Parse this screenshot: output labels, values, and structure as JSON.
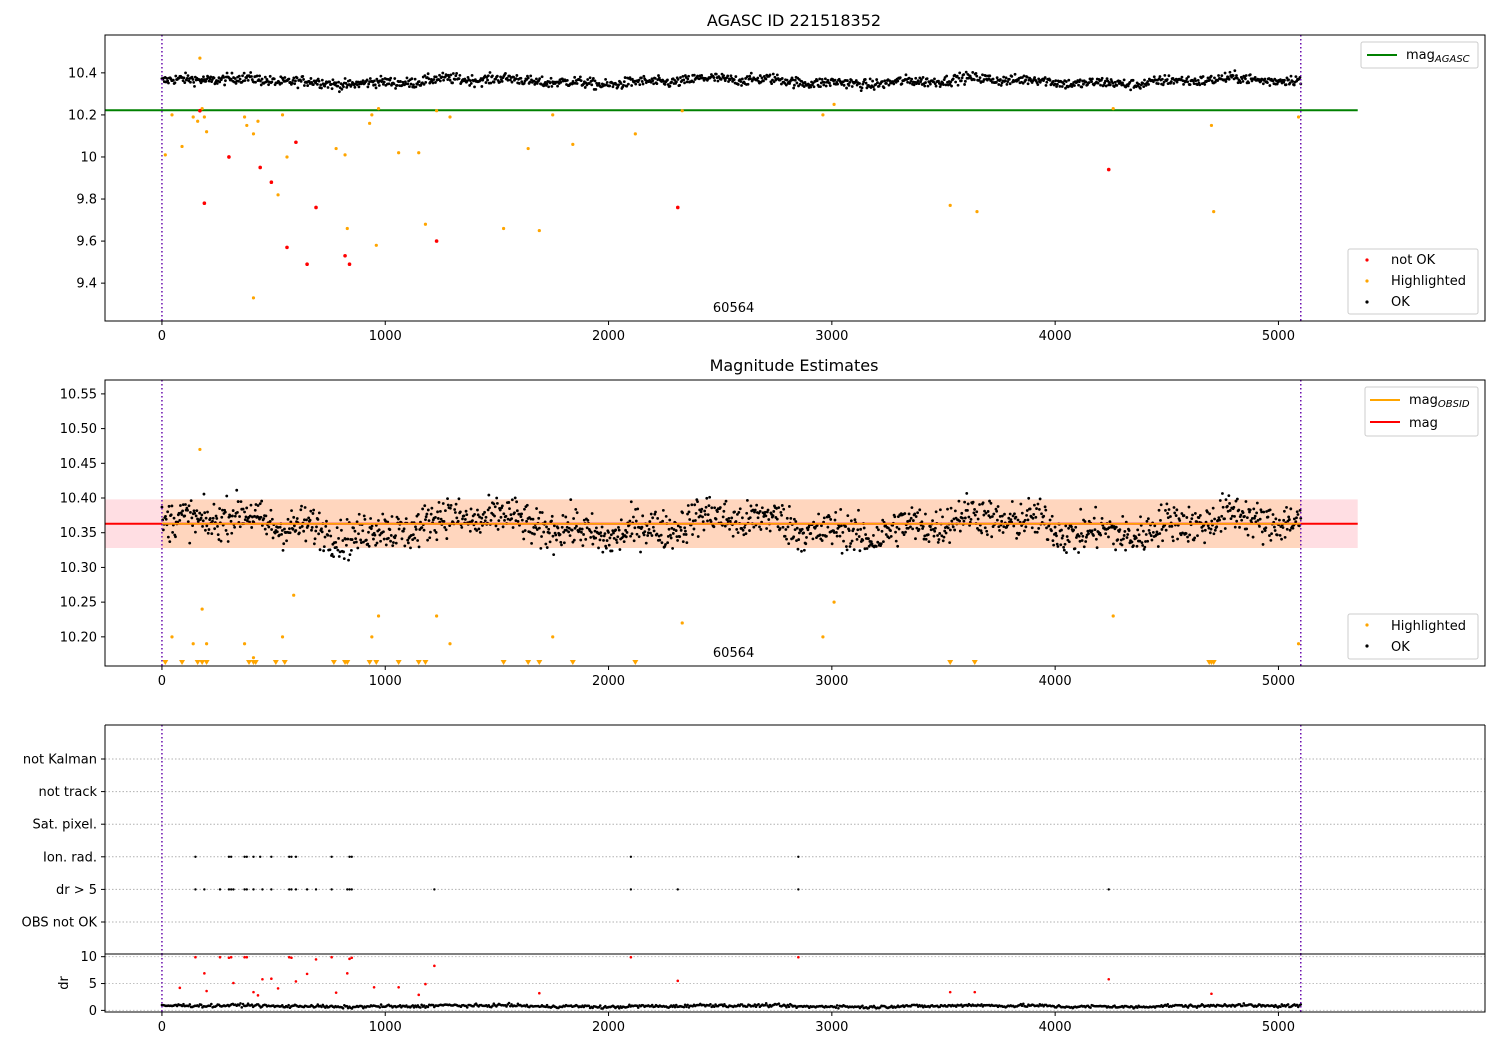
{
  "figure": {
    "background": "#ffffff"
  },
  "chart_data": [
    {
      "type": "scatter",
      "title": "AGASC ID 221518352",
      "xlim": [
        -255,
        5925
      ],
      "ylim": [
        9.22,
        10.58
      ],
      "xticks": [
        0,
        1000,
        2000,
        3000,
        4000,
        5000
      ],
      "yticks": [
        9.4,
        9.6,
        9.8,
        10.0,
        10.2,
        10.4
      ],
      "annotation": "60564",
      "annotation_x": 2560,
      "vlines": [
        0,
        5100
      ],
      "vline_color": "#6a0dad",
      "reference_line": {
        "name": "mag_AGASC",
        "value": 10.222,
        "x_range": [
          -255,
          5355
        ],
        "color": "#008000"
      },
      "legend_line": {
        "label": "mag",
        "sub": "AGASC",
        "color": "#008000",
        "placement": "upper right"
      },
      "legend_points": {
        "placement": "lower right",
        "entries": [
          {
            "label": "not OK",
            "color": "#ff0000"
          },
          {
            "label": "Highlighted",
            "color": "#ffa500"
          },
          {
            "label": "OK",
            "color": "#000000"
          }
        ]
      },
      "series": [
        {
          "name": "not OK",
          "color": "#ff0000",
          "points": [
            [
              170,
              10.22
            ],
            [
              190,
              9.78
            ],
            [
              300,
              10.0
            ],
            [
              440,
              9.95
            ],
            [
              490,
              9.88
            ],
            [
              560,
              9.57
            ],
            [
              600,
              10.07
            ],
            [
              650,
              9.49
            ],
            [
              690,
              9.76
            ],
            [
              820,
              9.53
            ],
            [
              840,
              9.49
            ],
            [
              1230,
              9.6
            ],
            [
              2310,
              9.76
            ],
            [
              4240,
              9.94
            ]
          ]
        },
        {
          "name": "Highlighted",
          "color": "#ffa500",
          "points": [
            [
              15,
              10.01
            ],
            [
              45,
              10.2
            ],
            [
              90,
              10.05
            ],
            [
              140,
              10.19
            ],
            [
              160,
              10.17
            ],
            [
              170,
              10.47
            ],
            [
              180,
              10.23
            ],
            [
              190,
              10.19
            ],
            [
              200,
              10.12
            ],
            [
              370,
              10.19
            ],
            [
              380,
              10.15
            ],
            [
              410,
              10.11
            ],
            [
              430,
              10.17
            ],
            [
              520,
              9.82
            ],
            [
              540,
              10.2
            ],
            [
              560,
              10.0
            ],
            [
              410,
              9.33
            ],
            [
              780,
              10.04
            ],
            [
              820,
              10.01
            ],
            [
              830,
              9.66
            ],
            [
              930,
              10.16
            ],
            [
              940,
              10.2
            ],
            [
              960,
              9.58
            ],
            [
              970,
              10.23
            ],
            [
              1060,
              10.02
            ],
            [
              1150,
              10.02
            ],
            [
              1180,
              9.68
            ],
            [
              1230,
              10.22
            ],
            [
              1290,
              10.19
            ],
            [
              1530,
              9.66
            ],
            [
              1640,
              10.04
            ],
            [
              1690,
              9.65
            ],
            [
              1750,
              10.2
            ],
            [
              1840,
              10.06
            ],
            [
              2120,
              10.11
            ],
            [
              2330,
              10.22
            ],
            [
              2960,
              10.2
            ],
            [
              3010,
              10.25
            ],
            [
              3530,
              9.77
            ],
            [
              3650,
              9.74
            ],
            [
              4260,
              10.23
            ],
            [
              4700,
              10.15
            ],
            [
              4710,
              9.74
            ],
            [
              5090,
              10.19
            ]
          ]
        },
        {
          "name": "OK",
          "color": "#000000",
          "band": {
            "x_range": [
              0,
              5100
            ],
            "center": 10.36,
            "spread": 0.045
          }
        }
      ]
    },
    {
      "type": "scatter",
      "title": "Magnitude Estimates",
      "xlim": [
        -255,
        5925
      ],
      "ylim": [
        10.158,
        10.57
      ],
      "xticks": [
        0,
        1000,
        2000,
        3000,
        4000,
        5000
      ],
      "yticks": [
        10.2,
        10.25,
        10.3,
        10.35,
        10.4,
        10.45,
        10.5,
        10.55
      ],
      "ytick_labels": [
        "10.20",
        "10.25",
        "10.30",
        "10.35",
        "10.40",
        "10.45",
        "10.50",
        "10.55"
      ],
      "annotation": "60564",
      "annotation_x": 2560,
      "vlines": [
        0,
        5100
      ],
      "vline_color": "#6a0dad",
      "mag_line": {
        "value": 10.363,
        "x_range": [
          -255,
          5355
        ],
        "color": "#ff0000"
      },
      "mag_band": {
        "low": 10.328,
        "high": 10.398,
        "x_range": [
          -255,
          5355
        ],
        "color": "#ffb6c1"
      },
      "obsid_line": {
        "value": 10.363,
        "x_range": [
          0,
          5100
        ],
        "color": "#ffa500"
      },
      "obsid_band": {
        "low": 10.328,
        "high": 10.398,
        "x_range": [
          0,
          5100
        ],
        "color": "#ffd0a0"
      },
      "legend_lines": {
        "placement": "upper right",
        "entries": [
          {
            "label": "mag",
            "sub": "OBSID",
            "color": "#ffa500"
          },
          {
            "label": "mag",
            "sub": "",
            "color": "#ff0000"
          }
        ]
      },
      "legend_points": {
        "placement": "lower right",
        "entries": [
          {
            "label": "Highlighted",
            "color": "#ffa500"
          },
          {
            "label": "OK",
            "color": "#000000"
          }
        ]
      },
      "series": [
        {
          "name": "Highlighted",
          "color": "#ffa500",
          "points": [
            [
              45,
              10.2
            ],
            [
              140,
              10.19
            ],
            [
              170,
              10.47
            ],
            [
              180,
              10.24
            ],
            [
              200,
              10.19
            ],
            [
              370,
              10.19
            ],
            [
              410,
              10.17
            ],
            [
              540,
              10.2
            ],
            [
              590,
              10.26
            ],
            [
              940,
              10.2
            ],
            [
              970,
              10.23
            ],
            [
              1230,
              10.23
            ],
            [
              1290,
              10.19
            ],
            [
              1750,
              10.2
            ],
            [
              2330,
              10.22
            ],
            [
              2960,
              10.2
            ],
            [
              3010,
              10.25
            ],
            [
              4260,
              10.23
            ],
            [
              5090,
              10.19
            ]
          ],
          "below_axis_markers": [
            15,
            90,
            160,
            180,
            200,
            390,
            410,
            420,
            510,
            550,
            770,
            820,
            830,
            930,
            960,
            1060,
            1150,
            1180,
            1530,
            1640,
            1690,
            1840,
            2120,
            3530,
            3640,
            4690,
            4700,
            4710
          ]
        },
        {
          "name": "OK",
          "color": "#000000",
          "band": {
            "x_range": [
              0,
              5100
            ],
            "center": 10.36,
            "spread": 0.05
          }
        }
      ]
    },
    {
      "type": "scatter",
      "title": "",
      "xlim": [
        -255,
        5925
      ],
      "categories": [
        "not Kalman",
        "not track",
        "Sat. pixel.",
        "Ion. rad.",
        "dr > 5",
        "OBS not OK"
      ],
      "vlines": [
        0,
        5100
      ],
      "vline_color": "#6a0dad",
      "flag_points": {
        "Ion. rad.": [
          150,
          300,
          310,
          370,
          380,
          410,
          440,
          490,
          570,
          580,
          600,
          760,
          840,
          850,
          2100,
          2850
        ],
        "dr > 5": [
          150,
          190,
          260,
          300,
          310,
          320,
          370,
          380,
          410,
          450,
          490,
          570,
          580,
          600,
          650,
          690,
          760,
          830,
          840,
          850,
          1220,
          2100,
          2310,
          2850,
          4240
        ]
      }
    },
    {
      "type": "scatter",
      "title": "",
      "ylabel": "dr",
      "xlim": [
        -255,
        5925
      ],
      "ylim": [
        -0.3,
        10.5
      ],
      "xticks": [
        0,
        1000,
        2000,
        3000,
        4000,
        5000
      ],
      "yticks": [
        0,
        5,
        10
      ],
      "vlines": [
        0,
        5100
      ],
      "vline_color": "#6a0dad",
      "series": [
        {
          "name": "dr > 5",
          "color": "#ff0000",
          "points": [
            [
              80,
              4.2
            ],
            [
              150,
              9.9
            ],
            [
              190,
              6.9
            ],
            [
              200,
              3.6
            ],
            [
              260,
              9.9
            ],
            [
              300,
              9.8
            ],
            [
              310,
              9.9
            ],
            [
              320,
              5.1
            ],
            [
              370,
              9.9
            ],
            [
              380,
              9.9
            ],
            [
              410,
              3.4
            ],
            [
              430,
              2.8
            ],
            [
              450,
              5.8
            ],
            [
              490,
              5.9
            ],
            [
              520,
              4.1
            ],
            [
              570,
              9.9
            ],
            [
              580,
              9.8
            ],
            [
              600,
              5.4
            ],
            [
              650,
              6.8
            ],
            [
              690,
              9.5
            ],
            [
              760,
              9.9
            ],
            [
              780,
              3.3
            ],
            [
              830,
              6.9
            ],
            [
              840,
              9.6
            ],
            [
              850,
              9.8
            ],
            [
              950,
              4.3
            ],
            [
              1060,
              4.3
            ],
            [
              1150,
              2.9
            ],
            [
              1180,
              4.9
            ],
            [
              1220,
              8.3
            ],
            [
              1690,
              3.2
            ],
            [
              2100,
              9.9
            ],
            [
              2310,
              5.5
            ],
            [
              2850,
              9.9
            ],
            [
              3530,
              3.4
            ],
            [
              3640,
              3.4
            ],
            [
              4240,
              5.8
            ],
            [
              4700,
              3.1
            ]
          ]
        },
        {
          "name": "dr",
          "color": "#000000",
          "band": {
            "x_range": [
              0,
              5100
            ],
            "center": 0.8,
            "spread": 0.5
          }
        }
      ]
    }
  ]
}
